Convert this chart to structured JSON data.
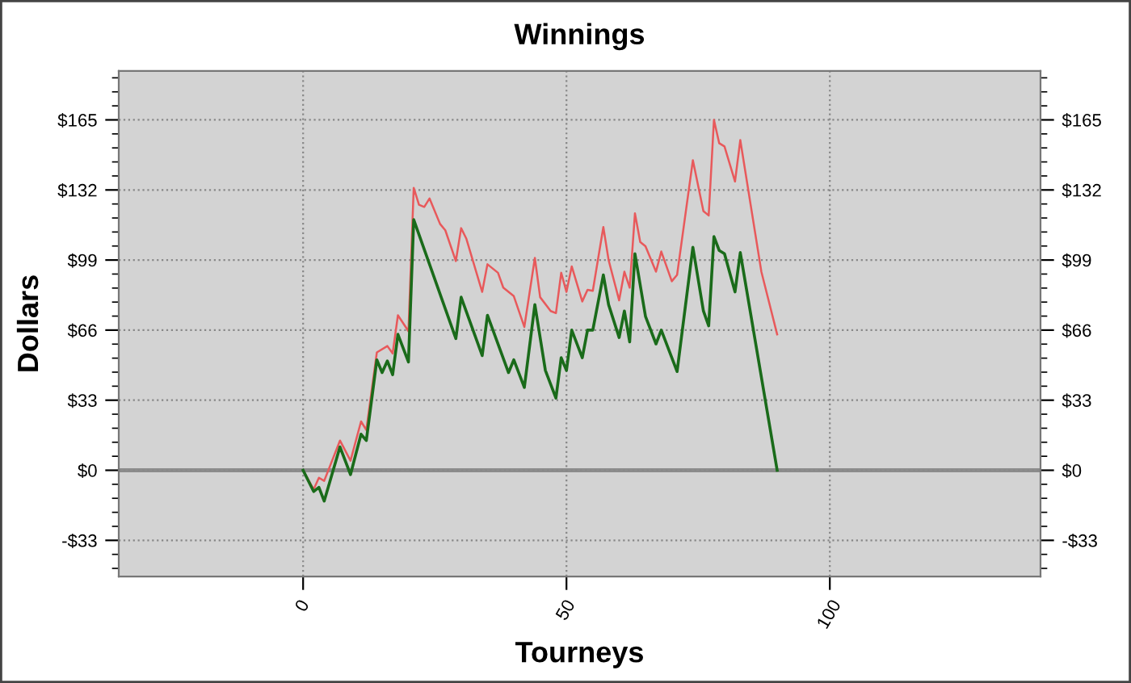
{
  "chart_data": {
    "type": "line",
    "title": "Winnings",
    "xlabel": "Tourneys",
    "ylabel": "Dollars",
    "series": [
      {
        "color": "#e8595b",
        "x": [
          0,
          2,
          3,
          4,
          7,
          9,
          11,
          12,
          14,
          16,
          17,
          18,
          20,
          21,
          22,
          23,
          24,
          26,
          27,
          29,
          30,
          31,
          34,
          35,
          37,
          38,
          40,
          42,
          44,
          45,
          47,
          48,
          49,
          50,
          51,
          53,
          54,
          55,
          57,
          58,
          60,
          61,
          62,
          63,
          64,
          65,
          67,
          68,
          70,
          71,
          74,
          76,
          77,
          78,
          79,
          80,
          82,
          83,
          87,
          90
        ],
        "values": [
          0,
          -9,
          -3.5,
          -5,
          14,
          4.5,
          23,
          19,
          55.5,
          58.5,
          55,
          73,
          65.5,
          133,
          125,
          124,
          128,
          116,
          113,
          98.5,
          114,
          109,
          84,
          97,
          93,
          86,
          82,
          67.5,
          100,
          81.5,
          75,
          74,
          93,
          84,
          96,
          79.5,
          85,
          84.5,
          114.5,
          99,
          80,
          93.5,
          86,
          121,
          107.5,
          105.5,
          93.5,
          103,
          89,
          92,
          146,
          122,
          120,
          165,
          154,
          152.5,
          136,
          155.5,
          93.5,
          64
        ]
      },
      {
        "color": "#1a6b1a",
        "x": [
          0,
          2,
          3,
          4,
          7,
          9,
          11,
          12,
          14,
          15,
          16,
          17,
          18,
          20,
          21,
          29,
          30,
          34,
          35,
          39,
          40,
          42,
          44,
          46,
          48,
          49,
          50,
          51,
          53,
          54,
          55,
          57,
          58,
          60,
          61,
          62,
          63,
          65,
          67,
          68,
          71,
          74,
          76,
          77,
          78,
          79,
          80,
          82,
          83,
          90
        ],
        "values": [
          0,
          -10,
          -8,
          -14.5,
          11,
          -2,
          17,
          14,
          52,
          46,
          51.5,
          45,
          64,
          51,
          118,
          62,
          81.5,
          54,
          73,
          46,
          52,
          39,
          78,
          47,
          34,
          53,
          47,
          66,
          53,
          66,
          66,
          92,
          78,
          62.5,
          75,
          60.5,
          102,
          72.5,
          59.5,
          66,
          46.5,
          105,
          75,
          68,
          110,
          103.5,
          102,
          84,
          102.5,
          0
        ]
      }
    ],
    "xlim": [
      -35,
      140
    ],
    "xticks": [
      0,
      50,
      100
    ],
    "ylim": [
      -50,
      188
    ],
    "yticks": [
      {
        "value": -33,
        "label": "-$33"
      },
      {
        "value": 0,
        "label": "$0"
      },
      {
        "value": 33,
        "label": "$33"
      },
      {
        "value": 66,
        "label": "$66"
      },
      {
        "value": 99,
        "label": "$99"
      },
      {
        "value": 132,
        "label": "$132"
      },
      {
        "value": 165,
        "label": "$165"
      }
    ],
    "ref_lines": [
      {
        "axis": "y",
        "value": 0,
        "label": null,
        "color": "#8c8c8c"
      }
    ],
    "grid": true,
    "legend": false,
    "marker": "none",
    "line_style": "solid"
  }
}
